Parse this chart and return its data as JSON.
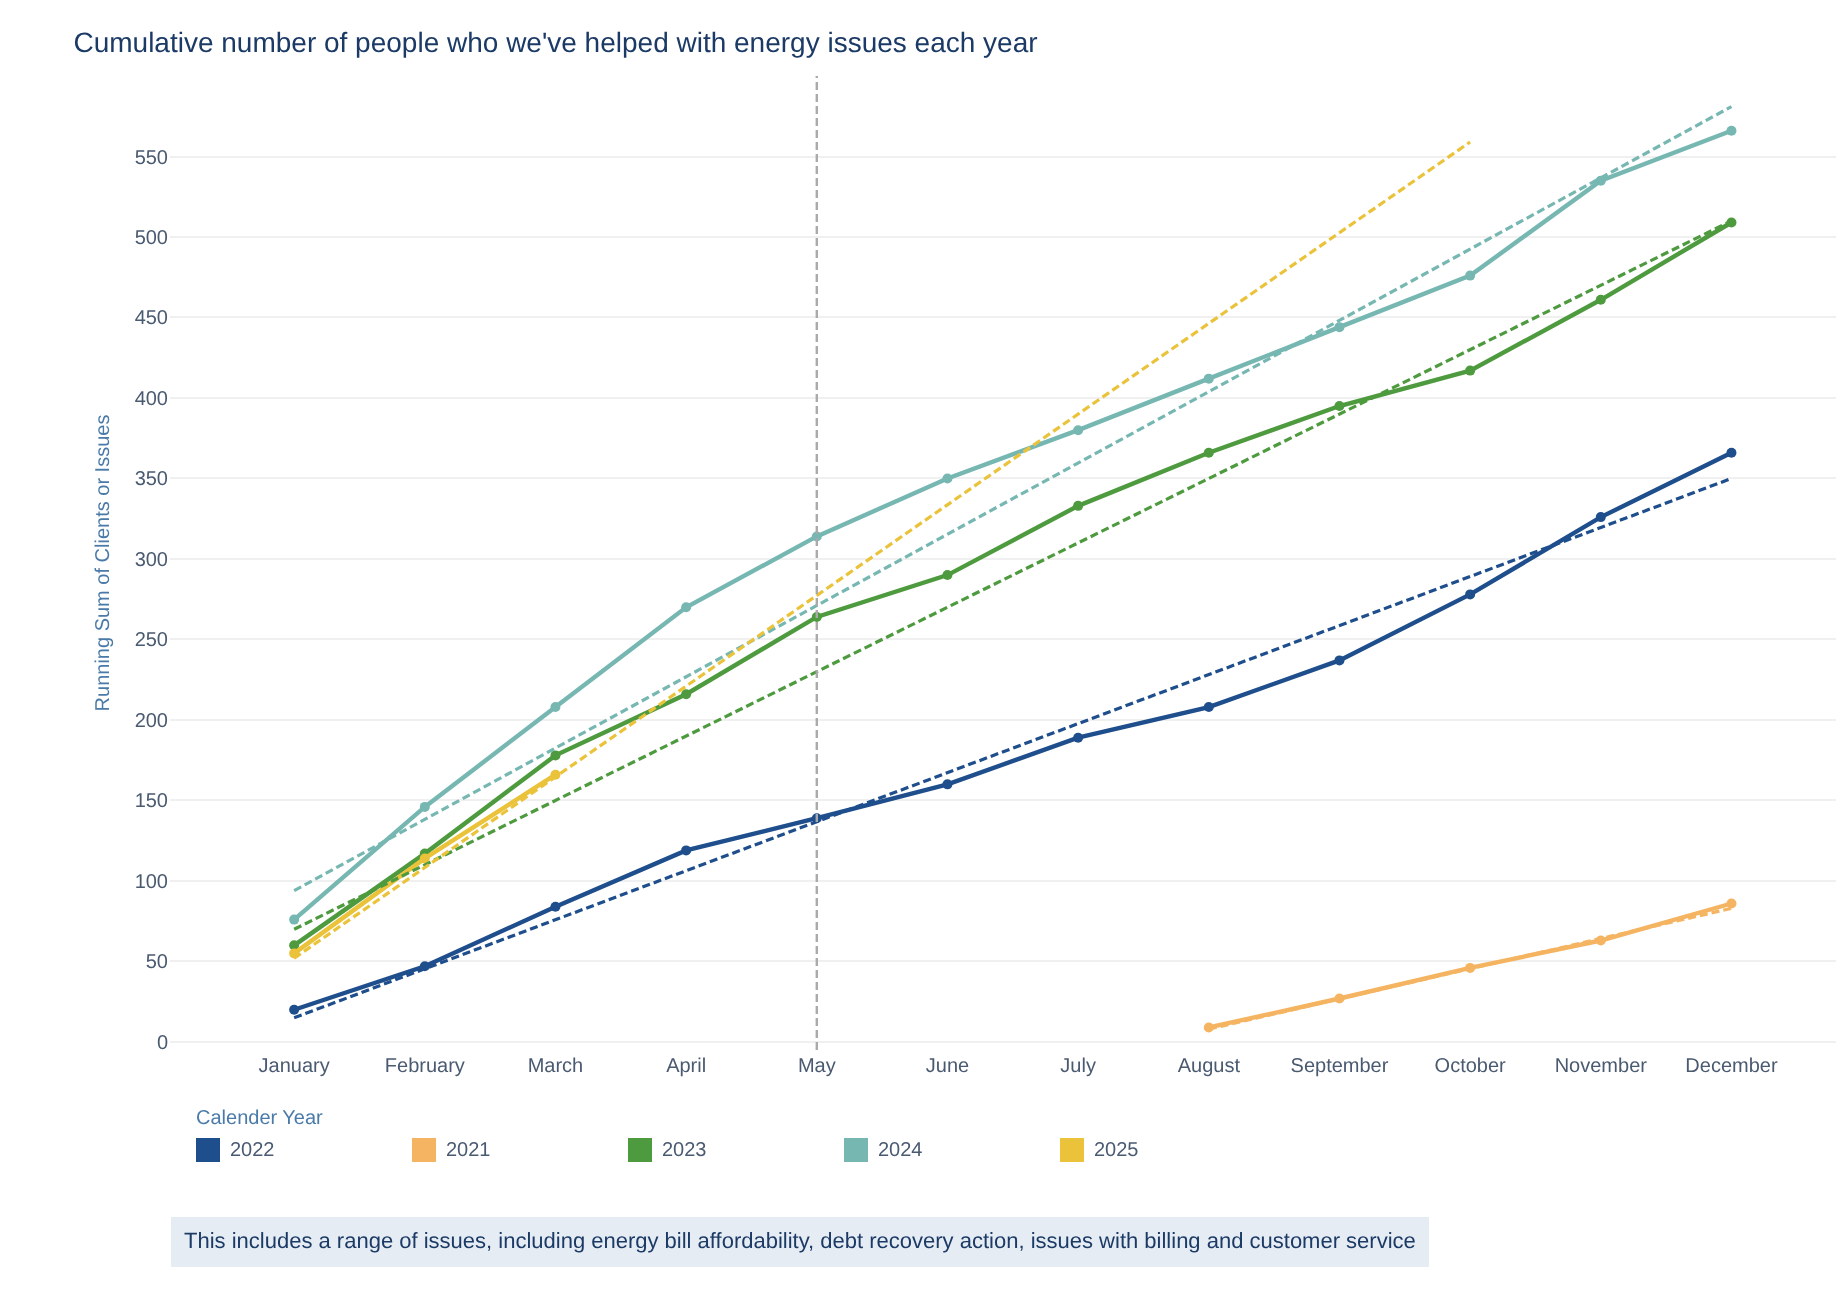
{
  "chart_data": {
    "type": "line",
    "title": "Cumulative number of people who we've helped with energy issues each year",
    "ylabel": "Running Sum of Clients or Issues",
    "legend_title": "Calender Year",
    "categories": [
      "January",
      "February",
      "March",
      "April",
      "May",
      "June",
      "July",
      "August",
      "September",
      "October",
      "November",
      "December"
    ],
    "ylim": [
      -5,
      600
    ],
    "yticks": [
      0,
      50,
      100,
      150,
      200,
      250,
      300,
      350,
      400,
      450,
      500,
      550
    ],
    "grid": "y",
    "legend": "bottom",
    "marker": "circle",
    "line_style": "solid",
    "series": [
      {
        "name": "2022",
        "color": "#1f4e8c",
        "values": [
          20,
          47,
          84,
          119,
          139,
          160,
          189,
          208,
          237,
          278,
          326,
          366
        ]
      },
      {
        "name": "2021",
        "color": "#f5b461",
        "values": [
          null,
          null,
          null,
          null,
          null,
          null,
          null,
          9,
          27,
          46,
          63,
          86
        ]
      },
      {
        "name": "2023",
        "color": "#4e9a3e",
        "values": [
          60,
          117,
          178,
          216,
          264,
          290,
          333,
          366,
          395,
          417,
          461,
          509
        ]
      },
      {
        "name": "2024",
        "color": "#76b7b2",
        "values": [
          76,
          146,
          208,
          270,
          314,
          350,
          380,
          412,
          444,
          476,
          535,
          566
        ]
      },
      {
        "name": "2025",
        "color": "#eac33b",
        "values": [
          55,
          114,
          166,
          null,
          null,
          null,
          null,
          null,
          null,
          null,
          null,
          null
        ]
      },
      {
        "type": "line",
        "color": "#1f4e8c",
        "x": [
          "January",
          "December"
        ],
        "values": [
          15,
          350
        ],
        "line_style": "dashed",
        "marker": "none"
      },
      {
        "type": "line",
        "color": "#f5b461",
        "x": [
          "August",
          "December"
        ],
        "values": [
          8,
          83
        ],
        "line_style": "dashed",
        "marker": "none"
      },
      {
        "type": "line",
        "color": "#4e9a3e",
        "x": [
          "January",
          "December"
        ],
        "values": [
          70,
          510
        ],
        "line_style": "dashed",
        "marker": "none"
      },
      {
        "type": "line",
        "color": "#76b7b2",
        "x": [
          "January",
          "December"
        ],
        "values": [
          94,
          581
        ],
        "line_style": "dashed",
        "marker": "none"
      },
      {
        "type": "line",
        "color": "#eac33b",
        "x": [
          "January",
          "October"
        ],
        "values": [
          52,
          559
        ],
        "line_style": "dashed",
        "marker": "none"
      }
    ],
    "ref_lines": [
      {
        "axis": "x",
        "value": "May",
        "color": "#aaaaaa",
        "line_style": "dashed"
      }
    ],
    "annotations": [
      "This includes a range of issues, including energy bill affordability, debt recovery action, issues with billing and customer service"
    ]
  }
}
